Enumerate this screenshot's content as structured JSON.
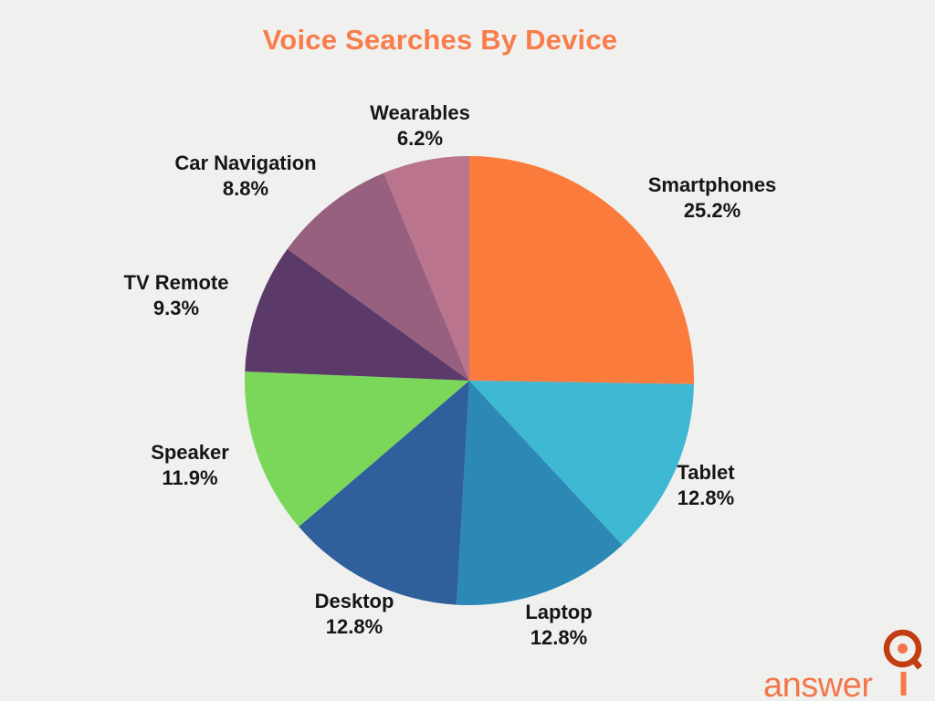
{
  "page": {
    "background_color": "#F0F1EF",
    "title": "Voice Searches By Device",
    "title_color": "#F87D4B",
    "label_text_color": "#161616"
  },
  "chart_data": {
    "type": "pie",
    "title": "Voice Searches By Device",
    "unit": "%",
    "start_angle_deg": 0,
    "direction": "clockwise",
    "legend": "none (labels placed around pie)",
    "slices": [
      {
        "label": "Smartphones",
        "value": 25.2,
        "display": "25.2%",
        "color": "#FA7B3C"
      },
      {
        "label": "Tablet",
        "value": 12.8,
        "display": "12.8%",
        "color": "#3FB8D3"
      },
      {
        "label": "Laptop",
        "value": 12.8,
        "display": "12.8%",
        "color": "#2C89B5"
      },
      {
        "label": "Desktop",
        "value": 12.8,
        "display": "12.8%",
        "color": "#30609B"
      },
      {
        "label": "Speaker",
        "value": 11.9,
        "display": "11.9%",
        "color": "#7BD75A"
      },
      {
        "label": "TV Remote",
        "value": 9.3,
        "display": "9.3%",
        "color": "#5B3A69"
      },
      {
        "label": "Car Navigation",
        "value": 8.8,
        "display": "8.8%",
        "color": "#96607E"
      },
      {
        "label": "Wearables",
        "value": 6.2,
        "display": "6.2%",
        "color": "#BA748E"
      }
    ]
  },
  "logo": {
    "text": "answer",
    "text_color": "#F4764B",
    "ring_color": "#C23D12",
    "dot_color": "#F4764B",
    "icon": "iq-magnifier-icon"
  }
}
